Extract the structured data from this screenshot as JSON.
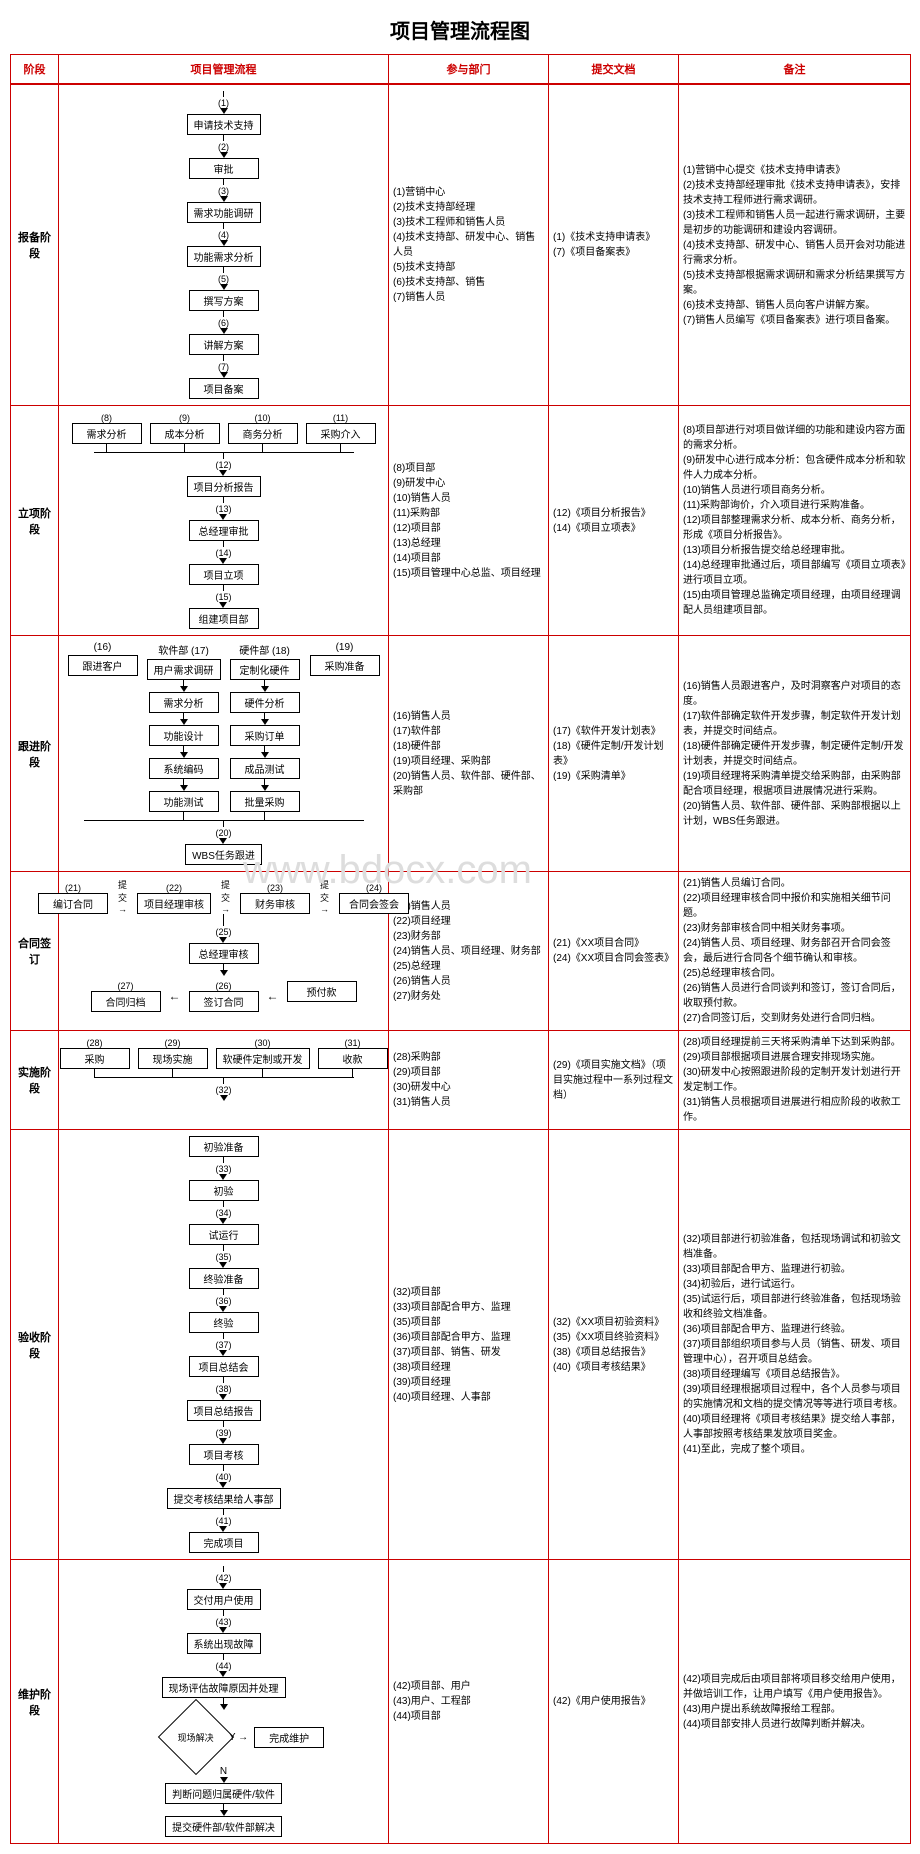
{
  "title": "项目管理流程图",
  "headers": {
    "stage": "阶段",
    "flow": "项目管理流程",
    "dept": "参与部门",
    "doc": "提交文档",
    "note": "备注"
  },
  "watermark": "www.bdocx.com",
  "colors": {
    "border": "#cc0000",
    "text": "#000000",
    "header_text": "#cc0000"
  },
  "stages": [
    {
      "name": "报备阶段",
      "steps": [
        {
          "n": "(1)",
          "t": "申请技术支持"
        },
        {
          "n": "(2)",
          "t": "审批"
        },
        {
          "n": "(3)",
          "t": "需求功能调研"
        },
        {
          "n": "(4)",
          "t": "功能需求分析"
        },
        {
          "n": "(5)",
          "t": "撰写方案"
        },
        {
          "n": "(6)",
          "t": "讲解方案"
        },
        {
          "n": "(7)",
          "t": "项目备案"
        }
      ],
      "dept": "(1)营销中心\n(2)技术支持部经理\n(3)技术工程师和销售人员\n(4)技术支持部、研发中心、销售人员\n(5)技术支持部\n(6)技术支持部、销售\n(7)销售人员",
      "doc": "(1)《技术支持申请表》\n(7)《项目备案表》",
      "note": "(1)营销中心提交《技术支持申请表》\n(2)技术支持部经理审批《技术支持申请表》，安排技术支持工程师进行需求调研。\n(3)技术工程师和销售人员一起进行需求调研，主要是初步的功能调研和建设内容调研。\n(4)技术支持部、研发中心、销售人员开会对功能进行需求分析。\n(5)技术支持部根据需求调研和需求分析结果撰写方案。\n(6)技术支持部、销售人员向客户讲解方案。\n(7)销售人员编写《项目备案表》进行项目备案。"
    },
    {
      "name": "立项阶段",
      "top_row": [
        {
          "n": "(8)",
          "t": "需求分析"
        },
        {
          "n": "(9)",
          "t": "成本分析"
        },
        {
          "n": "(10)",
          "t": "商务分析"
        },
        {
          "n": "(11)",
          "t": "采购介入"
        }
      ],
      "steps": [
        {
          "n": "(12)",
          "t": "项目分析报告"
        },
        {
          "n": "(13)",
          "t": "总经理审批"
        },
        {
          "n": "(14)",
          "t": "项目立项"
        },
        {
          "n": "(15)",
          "t": "组建项目部"
        }
      ],
      "dept": "(8)项目部\n(9)研发中心\n(10)销售人员\n(11)采购部\n(12)项目部\n(13)总经理\n(14)项目部\n(15)项目管理中心总监、项目经理",
      "doc": "(12)《项目分析报告》\n(14)《项目立项表》",
      "note": "(8)项目部进行对项目做详细的功能和建设内容方面的需求分析。\n(9)研发中心进行成本分析：包含硬件成本分析和软件人力成本分析。\n(10)销售人员进行项目商务分析。\n(11)采购部询价，介入项目进行采购准备。\n(12)项目部整理需求分析、成本分析、商务分析，形成《项目分析报告》。\n(13)项目分析报告提交给总经理审批。\n(14)总经理审批通过后，项目部编写《项目立项表》进行项目立项。\n(15)由项目管理总监确定项目经理，由项目经理调配人员组建项目部。"
    },
    {
      "name": "跟进阶段",
      "cols": [
        {
          "label": "(16)",
          "head": "跟进客户",
          "items": []
        },
        {
          "label": "软件部 (17)",
          "head": "用户需求调研",
          "items": [
            "需求分析",
            "功能设计",
            "系统编码",
            "功能测试"
          ]
        },
        {
          "label": "硬件部 (18)",
          "head": "定制化硬件",
          "items": [
            "硬件分析",
            "采购订单",
            "成品测试",
            "批量采购"
          ]
        },
        {
          "label": "(19)",
          "head": "采购准备",
          "items": []
        }
      ],
      "merge": {
        "n": "(20)",
        "t": "WBS任务跟进"
      },
      "dept": "(16)销售人员\n(17)软件部\n(18)硬件部\n(19)项目经理、采购部\n(20)销售人员、软件部、硬件部、采购部",
      "doc": "(17)《软件开发计划表》\n(18)《硬件定制/开发计划表》\n(19)《采购清单》",
      "note": "(16)销售人员跟进客户，及时洞察客户对项目的态度。\n(17)软件部确定软件开发步骤，制定软件开发计划表，并提交时间结点。\n(18)硬件部确定硬件开发步骤，制定硬件定制/开发计划表，并提交时间结点。\n(19)项目经理将采购清单提交给采购部，由采购部配合项目经理，根据项目进展情况进行采购。\n(20)销售人员、软件部、硬件部、采购部根据以上计划，WBS任务跟进。"
    },
    {
      "name": "合同签订",
      "top_row": [
        {
          "n": "(21)",
          "t": "编订合同",
          "arrow": "提交"
        },
        {
          "n": "(22)",
          "t": "项目经理审核",
          "arrow": "提交"
        },
        {
          "n": "(23)",
          "t": "财务审核",
          "arrow": "提交"
        },
        {
          "n": "(24)",
          "t": "合同会签会"
        }
      ],
      "steps": [
        {
          "n": "(25)",
          "t": "总经理审核"
        }
      ],
      "bottom_row": [
        {
          "n": "(27)",
          "t": "合同归档"
        },
        {
          "n": "(26)",
          "t": "签订合同"
        },
        {
          "n": "",
          "t": "预付款"
        }
      ],
      "dept": "(21)销售人员\n(22)项目经理\n(23)财务部\n(24)销售人员、项目经理、财务部\n(25)总经理\n(26)销售人员\n(27)财务处",
      "doc": "(21)《XX项目合同》\n(24)《XX项目合同会签表》",
      "note": "(21)销售人员编订合同。\n(22)项目经理审核合同中报价和实施相关细节问题。\n(23)财务部审核合同中相关财务事项。\n(24)销售人员、项目经理、财务部召开合同会签会，最后进行合同各个细节确认和审核。\n(25)总经理审核合同。\n(26)销售人员进行合同谈判和签订，签订合同后，收取预付款。\n(27)合同签订后，交到财务处进行合同归档。"
    },
    {
      "name": "实施阶段",
      "row": [
        {
          "n": "(28)",
          "t": "采购"
        },
        {
          "n": "(29)",
          "t": "现场实施"
        },
        {
          "n": "(30)",
          "t": "软硬件定制或开发"
        },
        {
          "n": "(31)",
          "t": "收款"
        }
      ],
      "merge_n": "(32)",
      "dept": "(28)采购部\n(29)项目部\n(30)研发中心\n(31)销售人员",
      "doc": "(29)《项目实施文档》（项目实施过程中一系列过程文档）",
      "note": "(28)项目经理提前三天将采购清单下达到采购部。\n(29)项目部根据项目进展合理安排现场实施。\n(30)研发中心按照跟进阶段的定制开发计划进行开发定制工作。\n(31)销售人员根据项目进展进行相应阶段的收款工作。"
    },
    {
      "name": "验收阶段",
      "steps": [
        {
          "n": "",
          "t": "初验准备"
        },
        {
          "n": "(33)",
          "t": "初验"
        },
        {
          "n": "(34)",
          "t": "试运行"
        },
        {
          "n": "(35)",
          "t": "终验准备"
        },
        {
          "n": "(36)",
          "t": "终验"
        },
        {
          "n": "(37)",
          "t": "项目总结会"
        },
        {
          "n": "(38)",
          "t": "项目总结报告"
        },
        {
          "n": "(39)",
          "t": "项目考核"
        },
        {
          "n": "(40)",
          "t": "提交考核结果给人事部"
        },
        {
          "n": "(41)",
          "t": "完成项目"
        }
      ],
      "dept": "(32)项目部\n(33)项目部配合甲方、监理\n(35)项目部\n(36)项目部配合甲方、监理\n(37)项目部、销售、研发\n(38)项目经理\n(39)项目经理\n(40)项目经理、人事部",
      "doc": "(32)《XX项目初验资料》\n(35)《XX项目终验资料》\n(38)《项目总结报告》\n(40)《项目考核结果》",
      "note": "(32)项目部进行初验准备，包括现场调试和初验文档准备。\n(33)项目部配合甲方、监理进行初验。\n(34)初验后，进行试运行。\n(35)试运行后，项目部进行终验准备，包括现场验收和终验文档准备。\n(36)项目部配合甲方、监理进行终验。\n(37)项目部组织项目参与人员（销售、研发、项目管理中心），召开项目总结会。\n(38)项目经理编写《项目总结报告》。\n(39)项目经理根据项目过程中，各个人员参与项目的实施情况和文档的提交情况等等进行项目考核。\n(40)项目经理将《项目考核结果》提交给人事部，人事部按照考核结果发放项目奖金。\n(41)至此，完成了整个项目。"
    },
    {
      "name": "维护阶段",
      "steps": [
        {
          "n": "(42)",
          "t": "交付用户使用"
        },
        {
          "n": "(43)",
          "t": "系统出现故障"
        },
        {
          "n": "(44)",
          "t": "现场评估故障原因并处理"
        }
      ],
      "decision": "现场解决",
      "yes_label": "Y",
      "no_label": "N",
      "yes_target": "完成维护",
      "no_steps": [
        "判断问题归属硬件/软件",
        "提交硬件部/软件部解决"
      ],
      "dept": "(42)项目部、用户\n(43)用户、工程部\n(44)项目部",
      "doc": "(42)《用户使用报告》",
      "note": "(42)项目完成后由项目部将项目移交给用户使用，并做培训工作，让用户填写《用户使用报告》。\n(43)用户提出系统故障报给工程部。\n(44)项目部安排人员进行故障判断并解决。"
    }
  ]
}
